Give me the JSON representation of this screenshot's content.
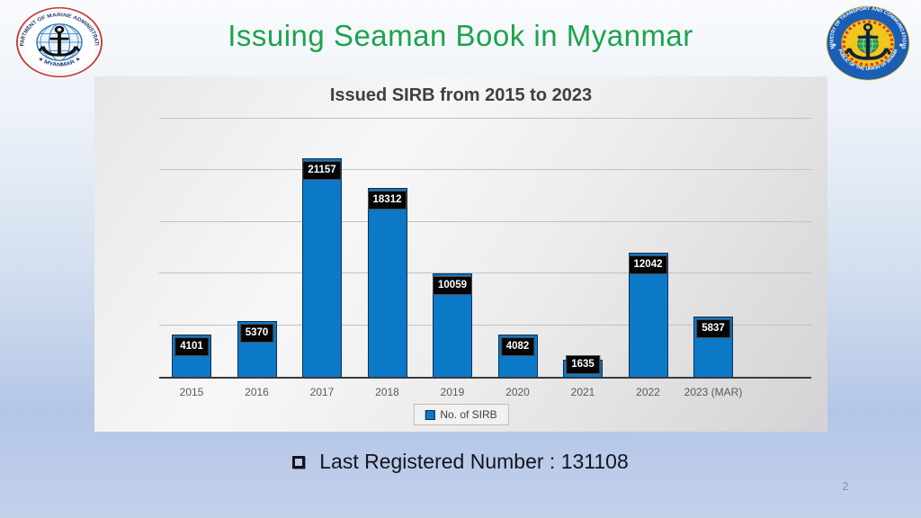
{
  "slide": {
    "title": "Issuing Seaman Book in Myanmar",
    "footer_note": "Last Registered Number : 131108",
    "page_number": "2"
  },
  "logos": {
    "left": {
      "top_text": "DEPARTMENT OF MARINE ADMINISTRATION",
      "bottom_text": "★ MYANMAR ★"
    },
    "right": {
      "top_text": "MINISTRY OF TRANSPORT AND COMMUNICATIONS",
      "bottom_text": "REPUBLIC OF THE UNION OF MYANMAR",
      "star_left": "★",
      "star_right": "★"
    }
  },
  "chart_data": {
    "type": "bar",
    "title": "Issued SIRB from 2015 to 2023",
    "categories": [
      "2015",
      "2016",
      "2017",
      "2018",
      "2019",
      "2020",
      "2021",
      "2022",
      "2023 (MAR)"
    ],
    "series": [
      {
        "name": "No. of SIRB",
        "values": [
          4101,
          5370,
          21157,
          18312,
          10059,
          4082,
          1635,
          12042,
          5837
        ]
      }
    ],
    "legend": {
      "position": "bottom",
      "label": "No. of SIRB"
    },
    "xlabel": "",
    "ylabel": "",
    "ylim": [
      0,
      25000
    ],
    "gridline_interval": 5000,
    "grid": true,
    "data_labels": "inside-end, white text on black box"
  },
  "colors": {
    "title_green": "#1ea24e",
    "bar_blue": "#0c78c8",
    "bar_border": "#0d2f52",
    "data_label_bg": "#050505",
    "data_label_text": "#ffffff",
    "chart_title_gray": "#3f3f3f",
    "axis_gray": "#3a3a3a",
    "background_blue": "#b4c6e7"
  }
}
